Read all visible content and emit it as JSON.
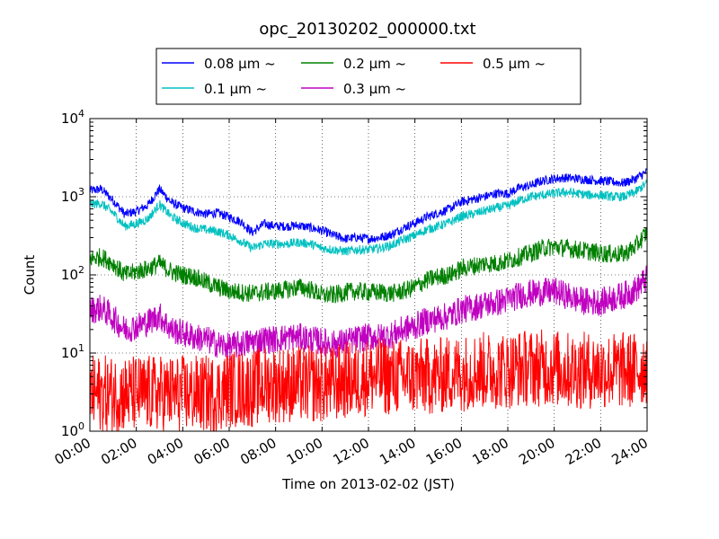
{
  "chart_data": {
    "type": "line",
    "title": "opc_20130202_000000.txt",
    "xlabel": "Time on 2013-02-02 (JST)",
    "ylabel": "Count",
    "x_unit": "hours",
    "xlim": [
      0,
      24
    ],
    "yscale": "log",
    "ylim": [
      1,
      10000
    ],
    "x_tick_labels": [
      "00:00",
      "02:00",
      "04:00",
      "06:00",
      "08:00",
      "10:00",
      "12:00",
      "14:00",
      "16:00",
      "18:00",
      "20:00",
      "22:00",
      "24:00"
    ],
    "y_tick_labels": [
      {
        "base": "10",
        "exp": "0"
      },
      {
        "base": "10",
        "exp": "1"
      },
      {
        "base": "10",
        "exp": "2"
      },
      {
        "base": "10",
        "exp": "3"
      },
      {
        "base": "10",
        "exp": "4"
      }
    ],
    "grid": true,
    "legend_position": "top-center",
    "x": [
      0,
      0.5,
      1,
      1.5,
      2,
      2.5,
      3,
      3.5,
      4,
      4.5,
      5,
      5.5,
      6,
      6.5,
      7,
      7.5,
      8,
      8.5,
      9,
      9.5,
      10,
      10.5,
      11,
      11.5,
      12,
      12.5,
      13,
      13.5,
      14,
      14.5,
      15,
      15.5,
      16,
      16.5,
      17,
      17.5,
      18,
      18.5,
      19,
      19.5,
      20,
      20.5,
      21,
      21.5,
      22,
      22.5,
      23,
      23.5,
      24
    ],
    "series": [
      {
        "name": "0.08 μm ~",
        "color": "#0000ff",
        "noise": 0.06,
        "values": [
          1200,
          1250,
          900,
          600,
          650,
          780,
          1250,
          850,
          720,
          650,
          600,
          620,
          550,
          480,
          350,
          450,
          420,
          420,
          430,
          400,
          370,
          320,
          290,
          300,
          290,
          300,
          330,
          400,
          460,
          550,
          620,
          700,
          860,
          930,
          1000,
          1100,
          1100,
          1300,
          1400,
          1600,
          1700,
          1750,
          1700,
          1650,
          1600,
          1550,
          1500,
          1700,
          2100
        ]
      },
      {
        "name": "0.1 μm ~",
        "color": "#00c0c0",
        "noise": 0.06,
        "values": [
          800,
          820,
          620,
          420,
          450,
          520,
          800,
          560,
          460,
          400,
          380,
          360,
          320,
          270,
          220,
          250,
          250,
          250,
          260,
          250,
          220,
          210,
          200,
          210,
          210,
          220,
          240,
          280,
          320,
          380,
          420,
          470,
          560,
          600,
          660,
          720,
          760,
          900,
          1000,
          1050,
          1100,
          1150,
          1100,
          1050,
          1050,
          1000,
          1000,
          1150,
          1500
        ]
      },
      {
        "name": "0.2 μm ~",
        "color": "#008000",
        "noise": 0.12,
        "values": [
          160,
          170,
          140,
          100,
          110,
          120,
          140,
          110,
          100,
          95,
          80,
          70,
          62,
          60,
          58,
          60,
          62,
          65,
          70,
          65,
          55,
          55,
          60,
          62,
          60,
          60,
          58,
          62,
          70,
          85,
          95,
          100,
          120,
          130,
          140,
          140,
          150,
          170,
          190,
          220,
          230,
          220,
          210,
          200,
          190,
          185,
          185,
          230,
          350
        ]
      },
      {
        "name": "0.3 μm ~",
        "color": "#c000c0",
        "noise": 0.18,
        "values": [
          35,
          38,
          28,
          20,
          22,
          25,
          30,
          20,
          18,
          16,
          15,
          13,
          12,
          13,
          14,
          15,
          15,
          16,
          16,
          15,
          14,
          13,
          14,
          15,
          16,
          16,
          17,
          20,
          22,
          26,
          28,
          30,
          36,
          38,
          42,
          44,
          48,
          55,
          58,
          60,
          62,
          55,
          48,
          45,
          45,
          50,
          55,
          65,
          90
        ]
      },
      {
        "name": "0.5 μm ~",
        "color": "#ff0000",
        "noise": 0.5,
        "values": [
          3,
          3,
          3,
          3,
          3,
          3,
          3,
          3,
          3,
          3,
          3,
          3,
          3.5,
          3.5,
          3.5,
          4,
          4,
          4,
          4,
          4,
          4,
          4,
          4.5,
          4.5,
          5,
          5,
          5,
          5,
          5,
          5,
          5,
          5.5,
          5.5,
          6,
          6,
          6,
          6,
          6.5,
          6.5,
          6.5,
          6.5,
          6,
          6,
          6,
          6,
          6,
          6,
          6,
          7
        ]
      }
    ]
  }
}
